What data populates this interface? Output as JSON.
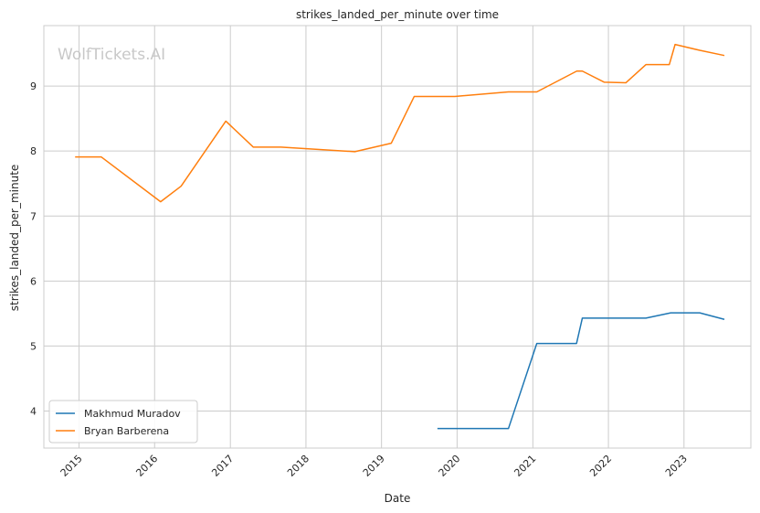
{
  "watermark": "WolfTickets.AI",
  "colors": {
    "background": "#ffffff",
    "grid": "#cccccc",
    "axes_frame": "#cccccc",
    "text": "#262626",
    "series_blue": "#1f77b4",
    "series_orange": "#ff7f0e"
  },
  "chart_data": {
    "type": "line",
    "title": "strikes_landed_per_minute over time",
    "xlabel": "Date",
    "ylabel": "strikes_landed_per_minute",
    "x_type": "date",
    "xlim": [
      "2014-07-15",
      "2023-11-20"
    ],
    "ylim": [
      3.43,
      9.93
    ],
    "x_ticks": [
      "2015-01-01",
      "2016-01-01",
      "2017-01-01",
      "2018-01-01",
      "2019-01-01",
      "2020-01-01",
      "2021-01-01",
      "2022-01-01",
      "2023-01-01"
    ],
    "x_tick_labels": [
      "2015",
      "2016",
      "2017",
      "2018",
      "2019",
      "2020",
      "2021",
      "2022",
      "2023"
    ],
    "x_tick_rotation": 45,
    "y_ticks": [
      4,
      5,
      6,
      7,
      8,
      9
    ],
    "y_tick_labels": [
      "4",
      "5",
      "6",
      "7",
      "8",
      "9"
    ],
    "grid": true,
    "legend_position": "lower-left",
    "series": [
      {
        "name": "Makhmud Muradov",
        "color": "#1f77b4",
        "points": [
          [
            "2019-09-28",
            3.73
          ],
          [
            "2020-09-05",
            3.73
          ],
          [
            "2021-01-20",
            5.04
          ],
          [
            "2021-07-31",
            5.04
          ],
          [
            "2021-08-28",
            5.43
          ],
          [
            "2022-07-01",
            5.43
          ],
          [
            "2022-10-29",
            5.51
          ],
          [
            "2023-03-18",
            5.51
          ],
          [
            "2023-07-15",
            5.41
          ]
        ]
      },
      {
        "name": "Bryan Barberena",
        "color": "#ff7f0e",
        "points": [
          [
            "2014-12-13",
            7.91
          ],
          [
            "2015-04-18",
            7.91
          ],
          [
            "2016-01-30",
            7.22
          ],
          [
            "2016-05-08",
            7.46
          ],
          [
            "2016-12-10",
            8.46
          ],
          [
            "2017-04-22",
            8.06
          ],
          [
            "2017-09-02",
            8.06
          ],
          [
            "2018-08-25",
            7.99
          ],
          [
            "2019-02-17",
            8.12
          ],
          [
            "2019-06-08",
            8.84
          ],
          [
            "2019-12-21",
            8.84
          ],
          [
            "2020-09-05",
            8.91
          ],
          [
            "2021-01-20",
            8.91
          ],
          [
            "2021-08-01",
            9.23
          ],
          [
            "2021-08-28",
            9.23
          ],
          [
            "2021-12-11",
            9.06
          ],
          [
            "2022-03-26",
            9.05
          ],
          [
            "2022-07-01",
            9.33
          ],
          [
            "2022-10-22",
            9.33
          ],
          [
            "2022-11-19",
            9.64
          ],
          [
            "2023-03-18",
            9.55
          ],
          [
            "2023-07-15",
            9.47
          ]
        ]
      }
    ]
  }
}
